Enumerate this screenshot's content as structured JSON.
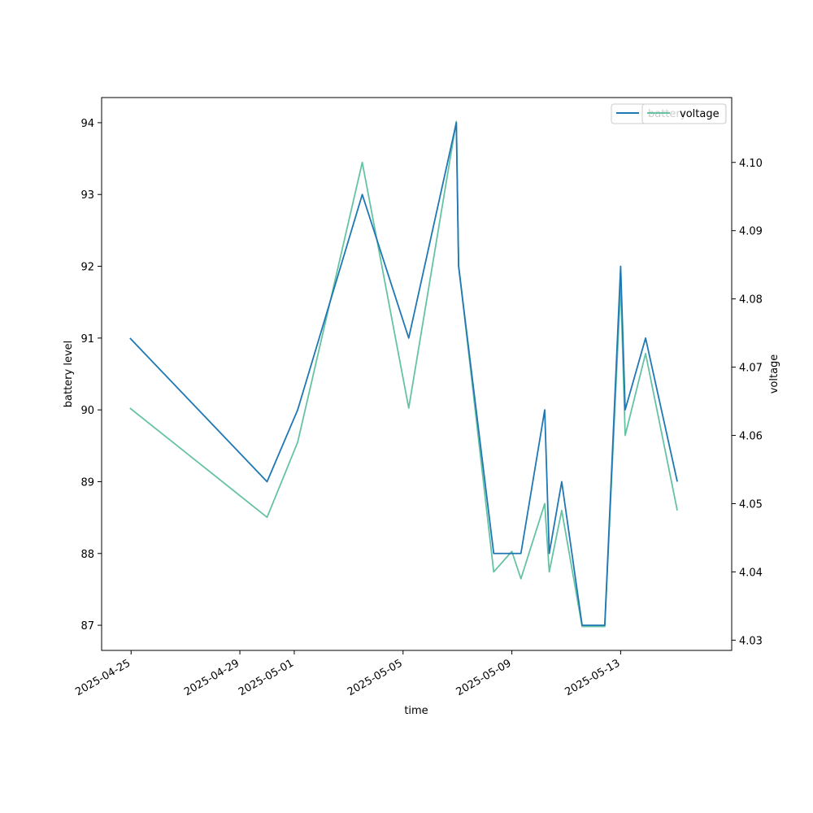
{
  "chart_data": {
    "type": "line",
    "xlabel": "time",
    "ylabel_left": "battery level",
    "ylabel_right": "voltage",
    "x_ticks": [
      "2025-04-25",
      "2025-04-29",
      "2025-05-01",
      "2025-05-05",
      "2025-05-09",
      "2025-05-13"
    ],
    "y_left_ticks": [
      "87",
      "88",
      "89",
      "90",
      "91",
      "92",
      "93",
      "94"
    ],
    "y_right_ticks": [
      "4.03",
      "4.04",
      "4.05",
      "4.06",
      "4.07",
      "4.08",
      "4.09",
      "4.10"
    ],
    "y_left_lim": [
      86.65,
      94.35
    ],
    "y_right_lim": [
      4.0285,
      4.1095
    ],
    "x_lim": [
      "2025-04-23T22:00",
      "2025-05-17T02:00"
    ],
    "legend_position": "upper right",
    "series": [
      {
        "name": "battery",
        "axis": "left",
        "color": "#1f77b4",
        "points": [
          [
            "2025-04-24T23:00",
            91
          ],
          [
            "2025-04-30T00:00",
            89
          ],
          [
            "2025-05-01T03:00",
            90
          ],
          [
            "2025-05-03T12:00",
            93
          ],
          [
            "2025-05-05T05:00",
            91
          ],
          [
            "2025-05-06T23:00",
            94
          ],
          [
            "2025-05-07T01:00",
            92
          ],
          [
            "2025-05-08T08:00",
            88
          ],
          [
            "2025-05-09T08:00",
            88
          ],
          [
            "2025-05-10T05:00",
            90
          ],
          [
            "2025-05-10T09:00",
            88
          ],
          [
            "2025-05-10T20:00",
            89
          ],
          [
            "2025-05-11T14:00",
            87
          ],
          [
            "2025-05-12T10:00",
            87
          ],
          [
            "2025-05-13T00:00",
            92
          ],
          [
            "2025-05-13T04:00",
            90
          ],
          [
            "2025-05-13T22:00",
            91
          ],
          [
            "2025-05-15T02:00",
            89
          ]
        ]
      },
      {
        "name": "voltage",
        "axis": "right",
        "color": "#66c2a5",
        "points": [
          [
            "2025-04-24T23:00",
            4.064
          ],
          [
            "2025-04-30T00:00",
            4.048
          ],
          [
            "2025-05-01T03:00",
            4.059
          ],
          [
            "2025-05-03T12:00",
            4.1
          ],
          [
            "2025-05-05T05:00",
            4.064
          ],
          [
            "2025-05-06T23:00",
            4.106
          ],
          [
            "2025-05-07T01:00",
            4.085
          ],
          [
            "2025-05-08T08:00",
            4.04
          ],
          [
            "2025-05-09T00:00",
            4.043
          ],
          [
            "2025-05-09T08:00",
            4.039
          ],
          [
            "2025-05-10T05:00",
            4.05
          ],
          [
            "2025-05-10T09:00",
            4.04
          ],
          [
            "2025-05-10T20:00",
            4.049
          ],
          [
            "2025-05-11T14:00",
            4.032
          ],
          [
            "2025-05-12T10:00",
            4.032
          ],
          [
            "2025-05-13T00:00",
            4.082
          ],
          [
            "2025-05-13T04:00",
            4.06
          ],
          [
            "2025-05-13T22:00",
            4.072
          ],
          [
            "2025-05-15T02:00",
            4.049
          ]
        ]
      }
    ],
    "legend_entries": [
      {
        "label": "battery",
        "color": "#1f77b4",
        "faded_behind": true
      },
      {
        "label": "voltage",
        "color": "#66c2a5"
      }
    ]
  }
}
